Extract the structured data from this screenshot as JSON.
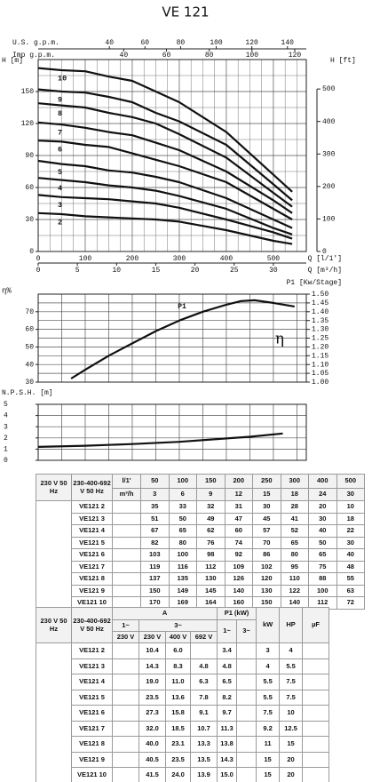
{
  "title": "VE 121",
  "chart_data": [
    {
      "type": "line",
      "y_label": "H [m]",
      "y2_label": "H [ft]",
      "x_label": "Q [l/1']",
      "x2_label": "Q [m³/h]",
      "x3_label": "U.S. g.p.m.",
      "x4_label": "Imp g.p.m.",
      "x": [
        0,
        50,
        100,
        150,
        200,
        250,
        300,
        400,
        500,
        540
      ],
      "series": [
        {
          "name": "2",
          "color": "#111111",
          "values": [
            36,
            35,
            33,
            32,
            31,
            30,
            28,
            20,
            10,
            7
          ]
        },
        {
          "name": "3",
          "color": "#111111",
          "values": [
            53,
            51,
            50,
            49,
            47,
            45,
            41,
            30,
            18,
            12
          ]
        },
        {
          "name": "4",
          "color": "#111111",
          "values": [
            69,
            67,
            65,
            62,
            60,
            57,
            52,
            40,
            22,
            16
          ]
        },
        {
          "name": "5",
          "color": "#111111",
          "values": [
            85,
            82,
            80,
            76,
            74,
            70,
            65,
            50,
            30,
            22
          ]
        },
        {
          "name": "6",
          "color": "#111111",
          "values": [
            104,
            103,
            100,
            98,
            92,
            86,
            80,
            65,
            40,
            30
          ]
        },
        {
          "name": "7",
          "color": "#111111",
          "values": [
            121,
            119,
            116,
            112,
            109,
            102,
            95,
            75,
            48,
            36
          ]
        },
        {
          "name": "8",
          "color": "#111111",
          "values": [
            139,
            137,
            135,
            130,
            126,
            120,
            110,
            88,
            55,
            42
          ]
        },
        {
          "name": "9",
          "color": "#111111",
          "values": [
            152,
            150,
            149,
            145,
            140,
            130,
            122,
            100,
            63,
            48
          ]
        },
        {
          "name": "10",
          "color": "#111111",
          "values": [
            172,
            170,
            169,
            164,
            160,
            150,
            140,
            112,
            72,
            56
          ]
        }
      ],
      "xlim": [
        0,
        570
      ],
      "xticks": [
        0,
        100,
        200,
        300,
        400,
        500
      ],
      "minor_xticks": [
        25,
        50,
        75,
        125,
        150,
        175,
        225,
        250,
        275,
        325,
        350,
        375,
        425,
        450,
        475,
        525,
        550
      ],
      "x2lim": [
        0,
        34.2
      ],
      "x2ticks": [
        0,
        5,
        10,
        15,
        20,
        25,
        30
      ],
      "x3lim": [
        0,
        150.6
      ],
      "x3ticks": [
        40,
        60,
        80,
        100,
        120,
        140
      ],
      "x4lim": [
        0,
        125.4
      ],
      "x4ticks": [
        40,
        60,
        80,
        100,
        120
      ],
      "ylim": [
        0,
        180
      ],
      "yticks": [
        0,
        30,
        60,
        90,
        120,
        150
      ],
      "minor_yticks": [
        15,
        45,
        75,
        105,
        135,
        165
      ],
      "y2lim": [
        0,
        590.6
      ],
      "y2ticks": [
        0,
        100,
        200,
        300,
        400,
        500
      ],
      "grid": true
    },
    {
      "type": "line",
      "y_label": "η%",
      "y2_label": "P1 [Kw/Stage]",
      "annotation": "P1",
      "x": [
        70,
        100,
        150,
        200,
        250,
        300,
        350,
        400,
        430,
        460,
        500,
        545
      ],
      "series": [
        {
          "name": "η",
          "color": "#111111",
          "values": [
            32,
            37,
            45,
            52,
            59,
            65,
            70,
            74,
            76,
            76.5,
            75,
            73
          ]
        }
      ],
      "xlim": [
        0,
        570
      ],
      "xgrid": [
        0,
        50,
        100,
        150,
        200,
        250,
        300,
        350,
        400,
        450,
        500,
        550
      ],
      "ylim": [
        30,
        80
      ],
      "yticks": [
        30,
        40,
        50,
        60,
        70
      ],
      "y2lim": [
        1.0,
        1.5
      ],
      "y2ticks": [
        {
          "value": 1.0,
          "label": "1.00"
        },
        {
          "value": 1.05,
          "label": "1.05"
        },
        {
          "value": 1.1,
          "label": "1.10"
        },
        {
          "value": 1.15,
          "label": "1.15"
        },
        {
          "value": 1.2,
          "label": "1.20"
        },
        {
          "value": 1.25,
          "label": "1.25"
        },
        {
          "value": 1.3,
          "label": "1.30"
        },
        {
          "value": 1.35,
          "label": "1.35"
        },
        {
          "value": 1.4,
          "label": "1.40"
        },
        {
          "value": 1.45,
          "label": "1.45"
        },
        {
          "value": 1.5,
          "label": "1.50"
        }
      ],
      "grid": true
    },
    {
      "type": "line",
      "y_label": "N.P.S.H. [m]",
      "x": [
        0,
        100,
        200,
        300,
        400,
        450,
        520
      ],
      "series": [
        {
          "color": "#111111",
          "values": [
            1.2,
            1.3,
            1.45,
            1.65,
            1.95,
            2.1,
            2.4
          ]
        }
      ],
      "xlim": [
        0,
        570
      ],
      "xgrid": [
        0,
        50,
        100,
        150,
        200,
        250,
        300,
        350,
        400,
        450,
        500,
        550
      ],
      "ylim": [
        0,
        5
      ],
      "yticks": [
        0,
        1,
        2,
        3,
        4,
        5
      ],
      "grid": true
    }
  ],
  "tables": [
    {
      "supply": "230 V 50 Hz",
      "voltage": "230-400-692 V 50 Hz",
      "q_unit": "l/1'",
      "q_unit2": "m³/h",
      "q": [
        50,
        100,
        150,
        200,
        250,
        300,
        400,
        500
      ],
      "q2": [
        3,
        6,
        9,
        12,
        15,
        18,
        24,
        30
      ],
      "rows": [
        {
          "model": "VE121 2",
          "h": [
            35,
            33,
            32,
            31,
            30,
            28,
            20,
            10
          ]
        },
        {
          "model": "VE121 3",
          "h": [
            51,
            50,
            49,
            47,
            45,
            41,
            30,
            18
          ]
        },
        {
          "model": "VE121 4",
          "h": [
            67,
            65,
            62,
            60,
            57,
            52,
            40,
            22
          ]
        },
        {
          "model": "VE121 5",
          "h": [
            82,
            80,
            76,
            74,
            70,
            65,
            50,
            30
          ]
        },
        {
          "model": "VE121 6",
          "h": [
            103,
            100,
            98,
            92,
            86,
            80,
            65,
            40
          ]
        },
        {
          "model": "VE121 7",
          "h": [
            119,
            116,
            112,
            109,
            102,
            95,
            75,
            48
          ]
        },
        {
          "model": "VE121 8",
          "h": [
            137,
            135,
            130,
            126,
            120,
            110,
            88,
            55
          ]
        },
        {
          "model": "VE121 9",
          "h": [
            150,
            149,
            145,
            140,
            130,
            122,
            100,
            63
          ]
        },
        {
          "model": "VE121 10",
          "h": [
            170,
            169,
            164,
            160,
            150,
            140,
            112,
            72
          ]
        }
      ]
    },
    {
      "supply": "230 V 50 Hz",
      "voltage": "230-400-692 V 50 Hz",
      "current": "A",
      "single_phase": "1~",
      "three_phase": "3~",
      "volts": [
        "230 V",
        "230 V",
        "400 V",
        "692 V"
      ],
      "power": "P1 (kW)",
      "power_phases": [
        "1~",
        "3~"
      ],
      "kw": "kW",
      "hp": "HP",
      "uf": "µF",
      "rows": [
        {
          "model": "VE121 2",
          "a": [
            null,
            "10.4",
            "6.0",
            null
          ],
          "p1": [
            "3.4",
            null
          ],
          "kw": "3",
          "hp": "4",
          "uf": null
        },
        {
          "model": "VE121 3",
          "a": [
            null,
            "14.3",
            "8.3",
            "4.8"
          ],
          "p1": [
            "4.8",
            null
          ],
          "kw": "4",
          "hp": "5.5",
          "uf": null
        },
        {
          "model": "VE121 4",
          "a": [
            null,
            "19.0",
            "11.0",
            "6.3"
          ],
          "p1": [
            "6.5",
            null
          ],
          "kw": "5.5",
          "hp": "7.5",
          "uf": null
        },
        {
          "model": "VE121 5",
          "a": [
            null,
            "23.5",
            "13.6",
            "7.8"
          ],
          "p1": [
            "8.2",
            null
          ],
          "kw": "5.5",
          "hp": "7.5",
          "uf": null
        },
        {
          "model": "VE121 6",
          "a": [
            null,
            "27.3",
            "15.8",
            "9.1"
          ],
          "p1": [
            "9.7",
            null
          ],
          "kw": "7.5",
          "hp": "10",
          "uf": null
        },
        {
          "model": "VE121 7",
          "a": [
            null,
            "32.0",
            "18.5",
            "10.7"
          ],
          "p1": [
            "11.3",
            null
          ],
          "kw": "9.2",
          "hp": "12.5",
          "uf": null
        },
        {
          "model": "VE121 8",
          "a": [
            null,
            "40.0",
            "23.1",
            "13.3"
          ],
          "p1": [
            "13.8",
            null
          ],
          "kw": "11",
          "hp": "15",
          "uf": null
        },
        {
          "model": "VE121 9",
          "a": [
            null,
            "40.5",
            "23.5",
            "13.5"
          ],
          "p1": [
            "14.3",
            null
          ],
          "kw": "15",
          "hp": "20",
          "uf": null
        },
        {
          "model": "VE121 10",
          "a": [
            null,
            "41.5",
            "24.0",
            "13.9"
          ],
          "p1": [
            "15.0",
            null
          ],
          "kw": "15",
          "hp": "20",
          "uf": null
        }
      ]
    }
  ]
}
